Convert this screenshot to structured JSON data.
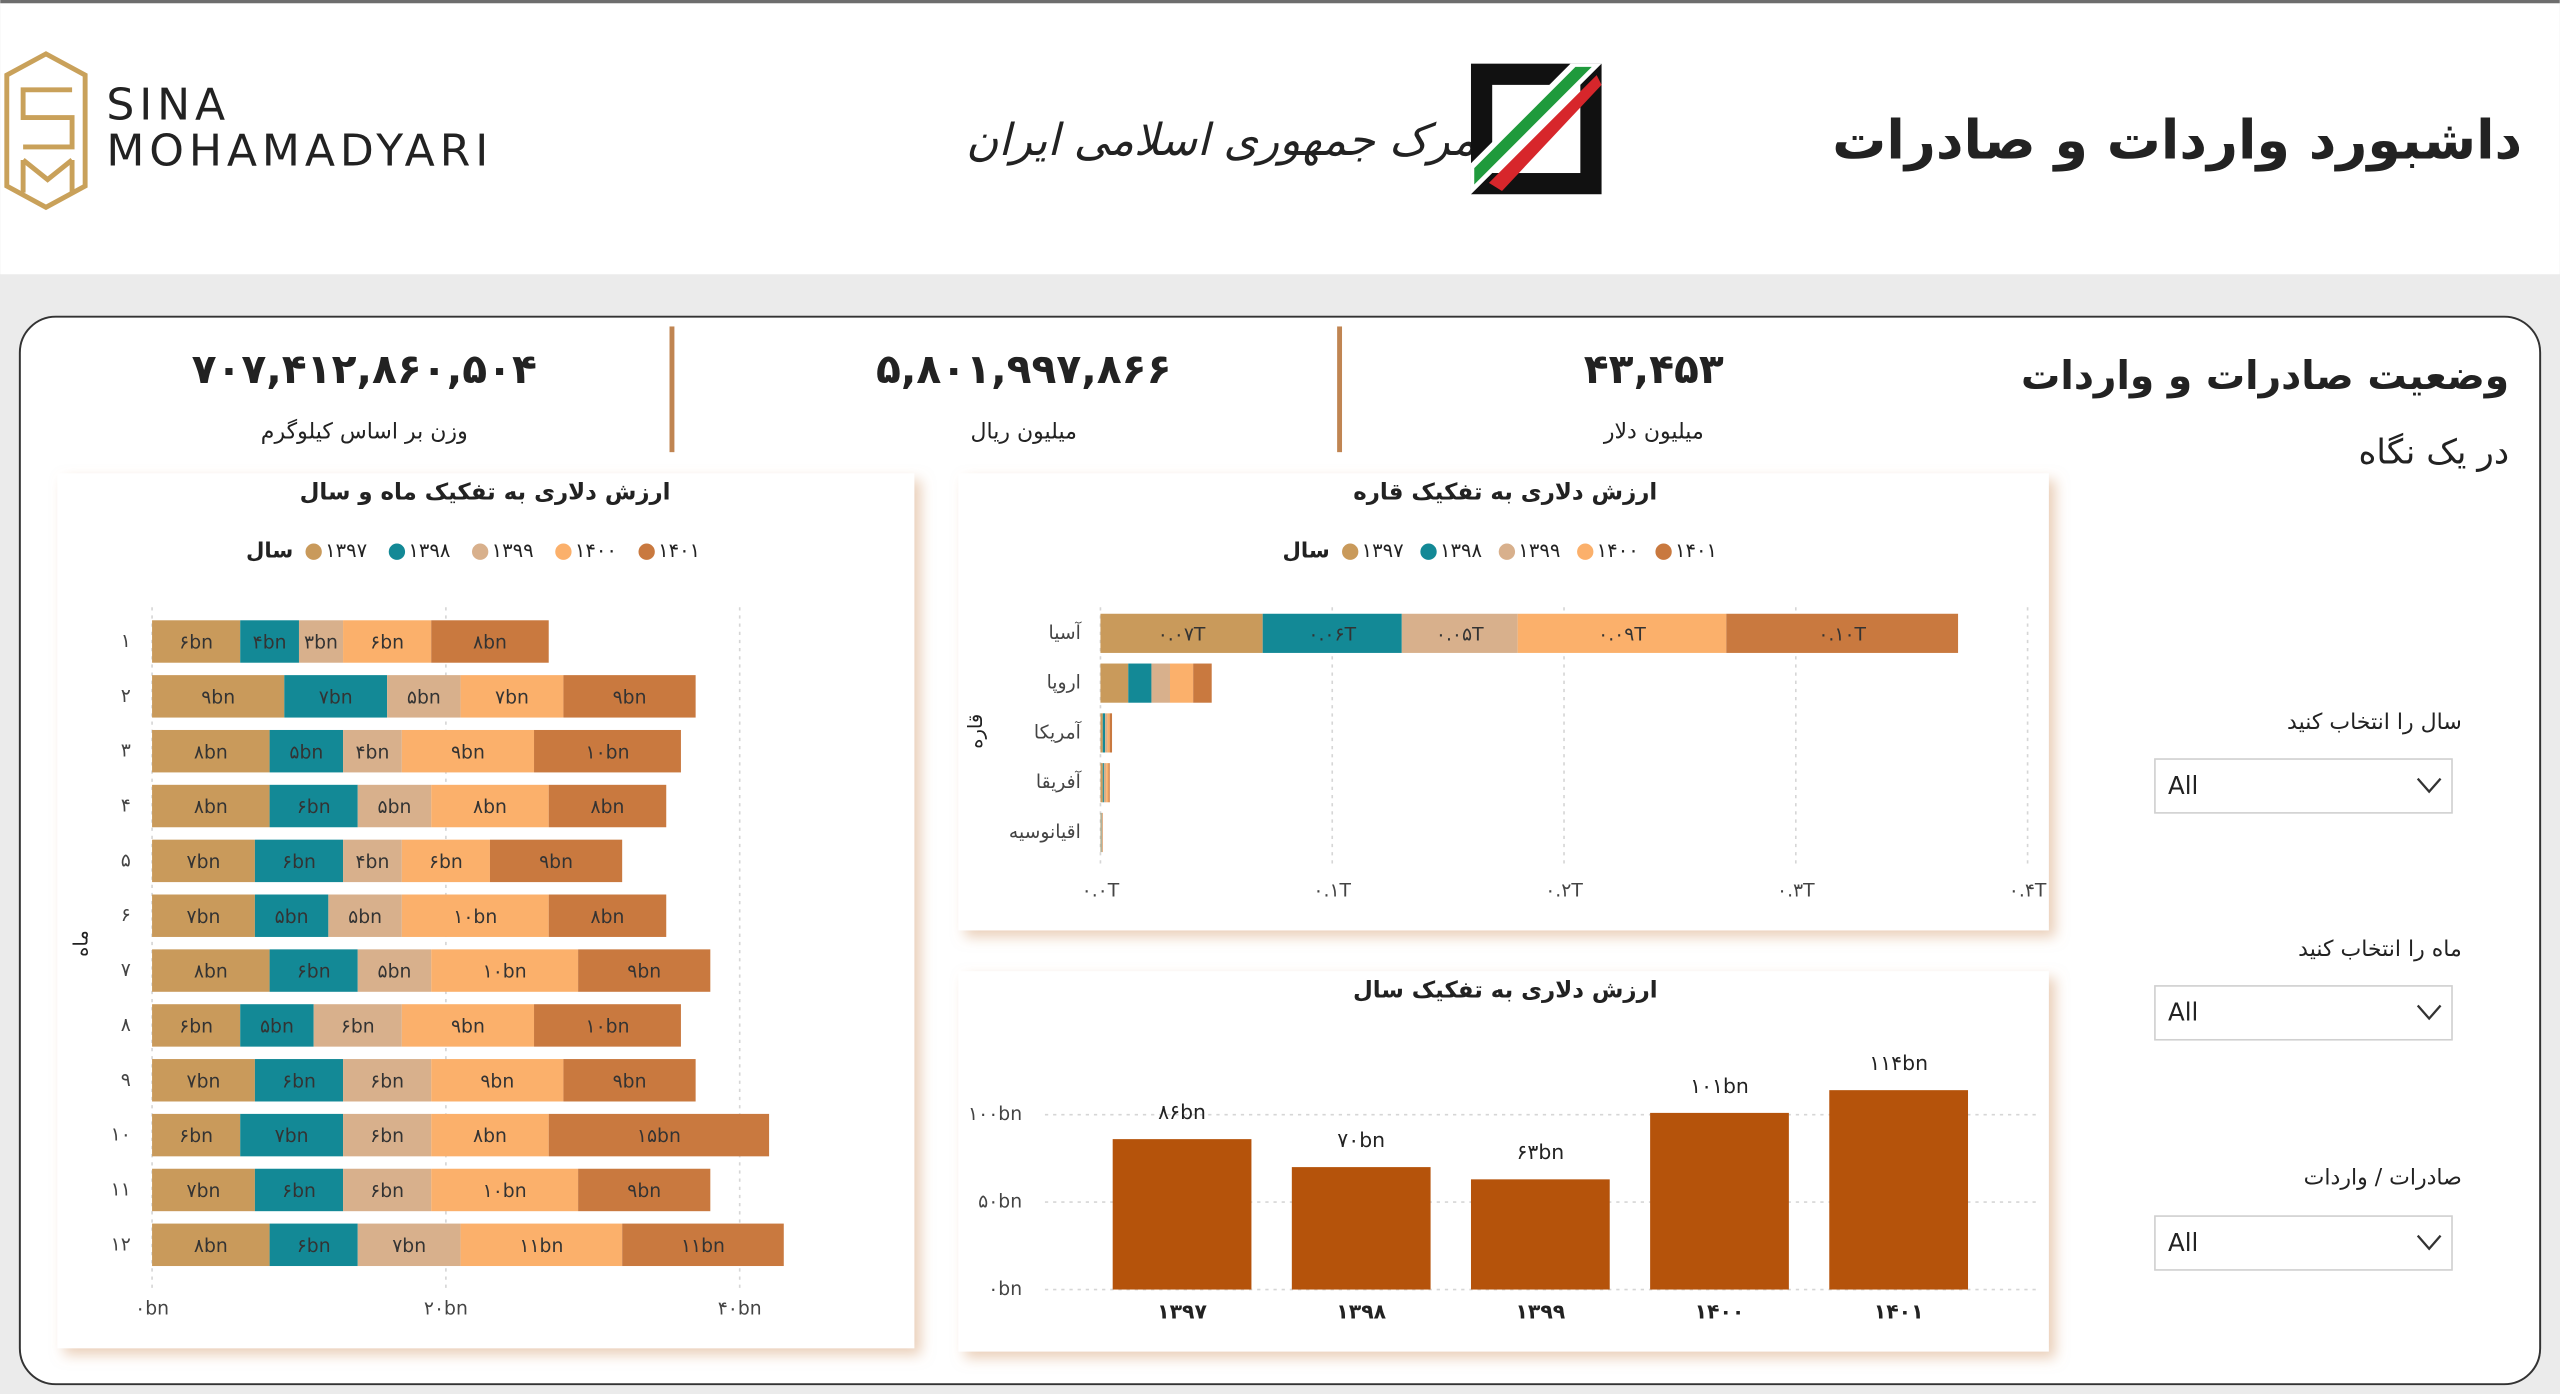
{
  "header": {
    "logo_line1": "SINA",
    "logo_line2": "MOHAMADYARI",
    "org": "گمرک جمهوری اسلامی ایران",
    "title": "داشبورد واردات و صادرات"
  },
  "panel": {
    "title": "وضعیت صادرات و واردات",
    "subtitle": "در یک نگاه"
  },
  "kpis": [
    {
      "value": "۷۰۷,۴۱۲,۸۶۰,۵۰۴",
      "label": "وزن بر اساس کیلوگرم"
    },
    {
      "value": "۵,۸۰۱,۹۹۷,۸۶۶",
      "label": "میلیون ریال"
    },
    {
      "value": "۴۳,۴۵۳",
      "label": "میلیون دلار"
    }
  ],
  "slicers": [
    {
      "label": "سال را انتخاب کنید",
      "value": "All"
    },
    {
      "label": "ماه را انتخاب کنید",
      "value": "All"
    },
    {
      "label": "صادرات / واردات",
      "value": "All"
    }
  ],
  "chart_data": [
    {
      "type": "stacked_barh",
      "title": "ارزش دلاری به تفکیک ماه و سال",
      "legend_title": "سال",
      "y_label": "ماه",
      "categories": [
        "۱",
        "۲",
        "۳",
        "۴",
        "۵",
        "۶",
        "۷",
        "۸",
        "۹",
        "۱۰",
        "۱۱",
        "۱۲"
      ],
      "series": [
        {
          "name": "۱۳۹۷",
          "color": "#c99a5b",
          "values": [
            6,
            9,
            8,
            8,
            7,
            7,
            8,
            6,
            7,
            6,
            7,
            8
          ],
          "value_labels": [
            "۶bn",
            "۹bn",
            "۸bn",
            "۸bn",
            "۷bn",
            "۷bn",
            "۸bn",
            "۶bn",
            "۷bn",
            "۶bn",
            "۷bn",
            "۸bn"
          ]
        },
        {
          "name": "۱۳۹۸",
          "color": "#138996",
          "values": [
            4,
            7,
            5,
            6,
            6,
            5,
            6,
            5,
            6,
            7,
            6,
            6
          ],
          "value_labels": [
            "۴bn",
            "۷bn",
            "۵bn",
            "۶bn",
            "۶bn",
            "۵bn",
            "۶bn",
            "۵bn",
            "۶bn",
            "۷bn",
            "۶bn",
            "۶bn"
          ]
        },
        {
          "name": "۱۳۹۹",
          "color": "#d8b08c",
          "values": [
            3,
            5,
            4,
            5,
            4,
            5,
            5,
            6,
            6,
            6,
            6,
            7
          ],
          "value_labels": [
            "۳bn",
            "۵bn",
            "۴bn",
            "۵bn",
            "۴bn",
            "۵bn",
            "۵bn",
            "۶bn",
            "۶bn",
            "۶bn",
            "۶bn",
            "۷bn"
          ]
        },
        {
          "name": "۱۴۰۰",
          "color": "#fbb06b",
          "values": [
            6,
            7,
            9,
            8,
            6,
            10,
            10,
            9,
            9,
            8,
            10,
            11
          ],
          "value_labels": [
            "۶bn",
            "۷bn",
            "۹bn",
            "۸bn",
            "۶bn",
            "۱۰bn",
            "۱۰bn",
            "۹bn",
            "۹bn",
            "۸bn",
            "۱۰bn",
            "۱۱bn"
          ]
        },
        {
          "name": "۱۴۰۱",
          "color": "#c9793f",
          "values": [
            8,
            9,
            10,
            8,
            9,
            8,
            9,
            10,
            9,
            15,
            9,
            11
          ],
          "value_labels": [
            "۸bn",
            "۹bn",
            "۱۰bn",
            "۸bn",
            "۹bn",
            "۸bn",
            "۹bn",
            "۱۰bn",
            "۹bn",
            "۱۵bn",
            "۹bn",
            "۱۱bn"
          ]
        }
      ],
      "xlim": [
        0,
        45
      ],
      "xticks": [
        {
          "value": 0,
          "label": "۰bn"
        },
        {
          "value": 20,
          "label": "۲۰bn"
        },
        {
          "value": 40,
          "label": "۴۰bn"
        }
      ],
      "grid": true
    },
    {
      "type": "stacked_barh",
      "title": "ارزش دلاری به تفکیک قاره",
      "legend_title": "سال",
      "y_label": "قاره",
      "categories": [
        "آسیا",
        "اروپا",
        "آمریکا",
        "آفریقا",
        "اقیانوسیه"
      ],
      "series": [
        {
          "name": "۱۳۹۷",
          "color": "#c99a5b",
          "values": [
            0.07,
            0.012,
            0.001,
            0.001,
            0.0002
          ],
          "value_labels": [
            "۰.۰۷T",
            null,
            null,
            null,
            null
          ]
        },
        {
          "name": "۱۳۹۸",
          "color": "#138996",
          "values": [
            0.06,
            0.01,
            0.001,
            0.0005,
            0.0002
          ],
          "value_labels": [
            "۰.۰۶T",
            null,
            null,
            null,
            null
          ]
        },
        {
          "name": "۱۳۹۹",
          "color": "#d8b08c",
          "values": [
            0.05,
            0.008,
            0.001,
            0.001,
            0.0002
          ],
          "value_labels": [
            "۰.۰۵T",
            null,
            null,
            null,
            null
          ]
        },
        {
          "name": "۱۴۰۰",
          "color": "#fbb06b",
          "values": [
            0.09,
            0.01,
            0.001,
            0.001,
            0.0002
          ],
          "value_labels": [
            "۰.۰۹T",
            null,
            null,
            null,
            null
          ]
        },
        {
          "name": "۱۴۰۱",
          "color": "#c9793f",
          "values": [
            0.1,
            0.008,
            0.001,
            0.0005,
            0.0002
          ],
          "value_labels": [
            "۰.۱۰T",
            null,
            null,
            null,
            null
          ]
        }
      ],
      "xlim": [
        0,
        0.4
      ],
      "xticks": [
        {
          "value": 0,
          "label": "۰.۰T"
        },
        {
          "value": 0.1,
          "label": "۰.۱T"
        },
        {
          "value": 0.2,
          "label": "۰.۲T"
        },
        {
          "value": 0.3,
          "label": "۰.۳T"
        },
        {
          "value": 0.4,
          "label": "۰.۴T"
        }
      ],
      "grid": true
    },
    {
      "type": "bar",
      "title": "ارزش دلاری به تفکیک سال",
      "categories": [
        "۱۳۹۷",
        "۱۳۹۸",
        "۱۳۹۹",
        "۱۴۰۰",
        "۱۴۰۱"
      ],
      "values": [
        86,
        70,
        63,
        101,
        114
      ],
      "value_labels": [
        "۸۶bn",
        "۷۰bn",
        "۶۳bn",
        "۱۰۱bn",
        "۱۱۴bn"
      ],
      "color": "#b5530b",
      "ylim": [
        0,
        140
      ],
      "yticks": [
        {
          "value": 0,
          "label": "۰bn"
        },
        {
          "value": 50,
          "label": "۵۰bn"
        },
        {
          "value": 100,
          "label": "۱۰۰bn"
        }
      ],
      "grid": true
    }
  ]
}
